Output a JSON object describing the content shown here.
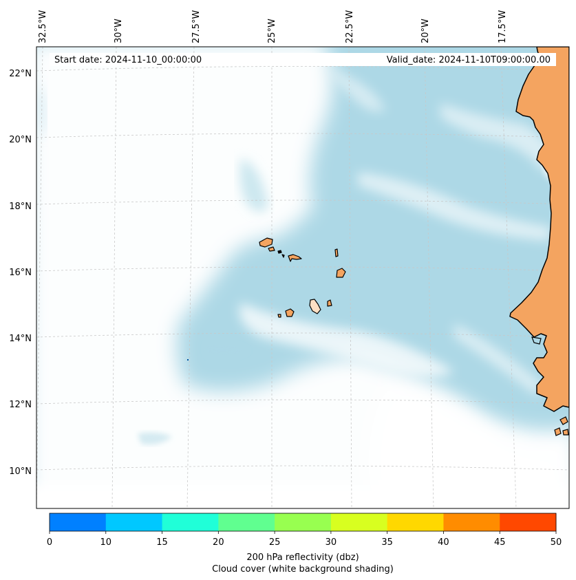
{
  "header": {
    "start_date": "Start date: 2024-11-10_00:00:00",
    "valid_date": "Valid_date: 2024-11-10T09:00:00.00"
  },
  "longitude_labels": [
    "32.5°W",
    "30°W",
    "27.5°W",
    "25°W",
    "22.5°W",
    "20°W",
    "17.5°W"
  ],
  "latitude_labels": [
    "22°N",
    "20°N",
    "18°N",
    "16°N",
    "14°N",
    "12°N",
    "10°N"
  ],
  "colorbar": {
    "ticks": [
      "0",
      "10",
      "15",
      "20",
      "25",
      "30",
      "35",
      "40",
      "45",
      "50"
    ],
    "colors": [
      "#0080ff",
      "#00c8ff",
      "#20ffd8",
      "#60ff90",
      "#98ff50",
      "#d8ff20",
      "#ffd800",
      "#ff8c00",
      "#ff4800"
    ],
    "title_line1": "200 hPa reflectivity (dbz)",
    "title_line2": "Cloud cover (white background shading)"
  },
  "map_colors": {
    "ocean": "#add8e6",
    "land": "#f4a460",
    "coastline": "#000000",
    "gridline": "#c8c8c8",
    "cloud": "#ffffff"
  }
}
